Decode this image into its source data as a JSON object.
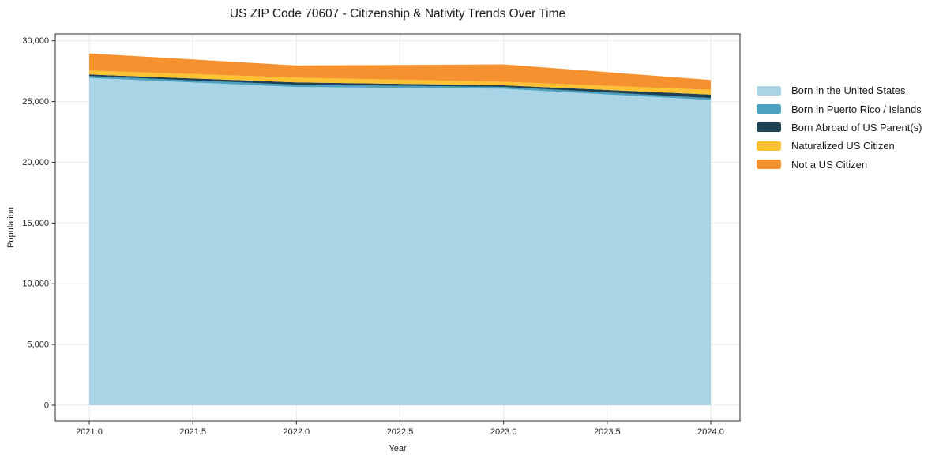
{
  "chart_data": {
    "type": "area",
    "stacked": true,
    "title": "US ZIP Code 70607 - Citizenship & Nativity Trends Over Time",
    "xlabel": "Year",
    "ylabel": "Population",
    "x": [
      2021,
      2022,
      2023,
      2024
    ],
    "series": [
      {
        "name": "Born in the United States",
        "color": "#a8d4e6",
        "values": [
          26950,
          26200,
          26050,
          25120
        ]
      },
      {
        "name": "Born in Puerto Rico / Islands",
        "color": "#4aa2c0",
        "values": [
          150,
          190,
          160,
          160
        ]
      },
      {
        "name": "Born Abroad of US Parent(s)",
        "color": "#1e4254",
        "values": [
          130,
          190,
          130,
          290
        ]
      },
      {
        "name": "Naturalized US Citizen",
        "color": "#fcc234",
        "values": [
          330,
          390,
          290,
          390
        ]
      },
      {
        "name": "Not a US Citizen",
        "color": "#f5912e",
        "values": [
          1400,
          1000,
          1430,
          820
        ]
      }
    ],
    "totals_by_year": [
      28960,
      27970,
      28060,
      26780
    ],
    "xlim": [
      2020.836,
      2024.141
    ],
    "ylim": [
      -1300,
      30565
    ],
    "x_ticks": [
      2021.0,
      2021.5,
      2022.0,
      2022.5,
      2023.0,
      2023.5,
      2024.0
    ],
    "x_tick_labels": [
      "2021.0",
      "2021.5",
      "2022.0",
      "2022.5",
      "2023.0",
      "2023.5",
      "2024.0"
    ],
    "y_ticks": [
      0,
      5000,
      10000,
      15000,
      20000,
      25000,
      30000
    ],
    "y_tick_labels": [
      "0",
      "5,000",
      "10,000",
      "15,000",
      "20,000",
      "25,000",
      "30,000"
    ],
    "grid": true,
    "grid_color": "#ebebeb",
    "spine_color": "#2a2a2a",
    "tick_text_color": "#222222",
    "legend_position": "right"
  }
}
